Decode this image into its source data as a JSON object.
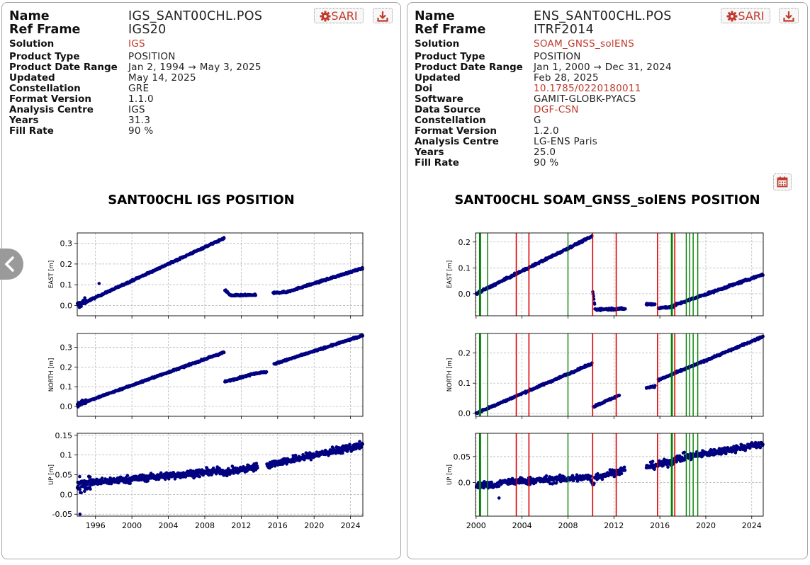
{
  "left": {
    "name_label": "Name",
    "name": "IGS_SANT00CHL.POS",
    "ref_frame_label": "Ref Frame",
    "ref_frame": "IGS20",
    "solution_label": "Solution",
    "solution": "IGS",
    "fields": [
      {
        "k": "Product Type",
        "v": "POSITION"
      },
      {
        "k": "Product Date Range",
        "v": "Jan 2, 1994 → May 3, 2025"
      },
      {
        "k": "Updated",
        "v": "May 14, 2025"
      },
      {
        "k": "Constellation",
        "v": "GRE"
      },
      {
        "k": "Format Version",
        "v": "1.1.0"
      },
      {
        "k": "Analysis Centre",
        "v": "IGS"
      },
      {
        "k": "Years",
        "v": "31.3"
      },
      {
        "k": "Fill Rate",
        "v": "90 %"
      }
    ],
    "sari_label": "SARI",
    "sari_icon": "gear-icon",
    "download_icon": "download-icon",
    "chart_title": "SANT00CHL IGS POSITION"
  },
  "right": {
    "name_label": "Name",
    "name": "ENS_SANT00CHL.POS",
    "ref_frame_label": "Ref Frame",
    "ref_frame": "ITRF2014",
    "solution_label": "Solution",
    "solution": "SOAM_GNSS_solENS",
    "fields": [
      {
        "k": "Product Type",
        "v": "POSITION",
        "link": false
      },
      {
        "k": "Product Date Range",
        "v": "Jan 1, 2000 → Dec 31, 2024",
        "link": false
      },
      {
        "k": "Updated",
        "v": "Feb 28, 2025",
        "link": false
      },
      {
        "k": "Doi",
        "v": "10.1785/0220180011",
        "link": true
      },
      {
        "k": "Software",
        "v": "GAMIT-GLOBK-PYACS",
        "link": false
      },
      {
        "k": "Data Source",
        "v": "DGF-CSN",
        "link": true
      },
      {
        "k": "Constellation",
        "v": "G",
        "link": false
      },
      {
        "k": "Format Version",
        "v": "1.2.0",
        "link": false
      },
      {
        "k": "Analysis Centre",
        "v": "LG-ENS Paris",
        "link": false
      },
      {
        "k": "Years",
        "v": "25.0",
        "link": false
      },
      {
        "k": "Fill Rate",
        "v": "90 %",
        "link": false
      }
    ],
    "sari_label": "SARI",
    "sari_icon": "gear-icon",
    "download_icon": "download-icon",
    "calendar_icon": "calendar-icon",
    "chart_title": "SANT00CHL SOAM_GNSS_solENS POSITION"
  },
  "nav_icon": "chevron-left-icon",
  "colors": {
    "data": "#000080",
    "link": "#c0392b",
    "green_event": "#008000",
    "red_event": "#dd0000"
  },
  "chart_data": [
    {
      "type": "scatter",
      "title": "SANT00CHL IGS POSITION",
      "xlim": [
        1994.0,
        2025.35
      ],
      "xticks": [
        1996,
        2000,
        2004,
        2008,
        2012,
        2016,
        2020,
        2024
      ],
      "panels": [
        {
          "ylabel": "EAST [m]",
          "ylim": [
            -0.05,
            0.35
          ],
          "yticks": [
            0.0,
            0.1,
            0.2,
            0.3
          ],
          "noise": 0.004,
          "segments": [
            {
              "x0": 1994.0,
              "x1": 1995.0,
              "y0": 0.0,
              "y1": 0.02,
              "noise": 0.018
            },
            {
              "x0": 1995.0,
              "x1": 2010.15,
              "y0": 0.018,
              "y1": 0.325
            },
            {
              "x0": 2010.2,
              "x1": 2010.8,
              "y0": 0.075,
              "y1": 0.05
            },
            {
              "x0": 2010.8,
              "x1": 2013.6,
              "y0": 0.048,
              "y1": 0.05
            },
            {
              "x0": 2015.5,
              "x1": 2017.0,
              "y0": 0.06,
              "y1": 0.065
            },
            {
              "x0": 2017.0,
              "x1": 2025.35,
              "y0": 0.065,
              "y1": 0.18
            }
          ],
          "outliers": [
            [
              1996.4,
              0.106
            ]
          ]
        },
        {
          "ylabel": "NORTH [m]",
          "ylim": [
            -0.05,
            0.37
          ],
          "yticks": [
            0.0,
            0.1,
            0.2,
            0.3
          ],
          "noise": 0.004,
          "segments": [
            {
              "x0": 1994.0,
              "x1": 1995.0,
              "y0": 0.01,
              "y1": 0.025,
              "noise": 0.012
            },
            {
              "x0": 1995.0,
              "x1": 2010.15,
              "y0": 0.025,
              "y1": 0.275
            },
            {
              "x0": 2010.2,
              "x1": 2013.0,
              "y0": 0.125,
              "y1": 0.16
            },
            {
              "x0": 2013.0,
              "x1": 2014.8,
              "y0": 0.165,
              "y1": 0.175
            },
            {
              "x0": 2015.6,
              "x1": 2025.35,
              "y0": 0.215,
              "y1": 0.36
            }
          ],
          "outliers": []
        },
        {
          "ylabel": "UP [m]",
          "ylim": [
            -0.055,
            0.155
          ],
          "yticks": [
            -0.05,
            0.0,
            0.05,
            0.1,
            0.15
          ],
          "noise": 0.009,
          "segments": [
            {
              "x0": 1994.0,
              "x1": 1995.5,
              "y0": 0.025,
              "y1": 0.03,
              "noise": 0.02
            },
            {
              "x0": 1995.5,
              "x1": 2010.0,
              "y0": 0.03,
              "y1": 0.06
            },
            {
              "x0": 2010.0,
              "x1": 2013.8,
              "y0": 0.055,
              "y1": 0.07
            },
            {
              "x0": 2014.8,
              "x1": 2025.35,
              "y0": 0.075,
              "y1": 0.125
            }
          ],
          "outliers": [
            [
              1994.3,
              -0.05
            ]
          ]
        }
      ]
    },
    {
      "type": "scatter",
      "title": "SANT00CHL SOAM_GNSS_solENS POSITION",
      "xlim": [
        1999.95,
        2025.0
      ],
      "xticks": [
        2000,
        2004,
        2008,
        2012,
        2016,
        2020,
        2024
      ],
      "green_events": [
        2000.3,
        2000.4,
        2001.0,
        2008.0,
        2017.0,
        2017.1,
        2018.3,
        2018.6,
        2018.9,
        2019.3
      ],
      "red_events": [
        2003.5,
        2004.6,
        2010.15,
        2012.2,
        2015.8,
        2017.3
      ],
      "panels": [
        {
          "ylabel": "EAST [m]",
          "ylim": [
            -0.085,
            0.235
          ],
          "yticks": [
            0.0,
            0.1,
            0.2
          ],
          "noise": 0.004,
          "segments": [
            {
              "x0": 2000.0,
              "x1": 2010.1,
              "y0": 0.0,
              "y1": 0.222
            },
            {
              "x0": 2010.15,
              "x1": 2010.35,
              "y0": 0.01,
              "y1": -0.05
            },
            {
              "x0": 2010.35,
              "x1": 2013.0,
              "y0": -0.06,
              "y1": -0.058
            },
            {
              "x0": 2014.8,
              "x1": 2015.6,
              "y0": -0.04,
              "y1": -0.04
            },
            {
              "x0": 2015.85,
              "x1": 2017.2,
              "y0": -0.055,
              "y1": -0.05
            },
            {
              "x0": 2017.2,
              "x1": 2025.0,
              "y0": -0.045,
              "y1": 0.075
            }
          ],
          "outliers": []
        },
        {
          "ylabel": "NORTH [m]",
          "ylim": [
            -0.01,
            0.265
          ],
          "yticks": [
            0.0,
            0.1,
            0.2
          ],
          "noise": 0.003,
          "segments": [
            {
              "x0": 2000.0,
              "x1": 2010.1,
              "y0": 0.0,
              "y1": 0.165
            },
            {
              "x0": 2010.2,
              "x1": 2012.5,
              "y0": 0.022,
              "y1": 0.06
            },
            {
              "x0": 2014.8,
              "x1": 2015.6,
              "y0": 0.085,
              "y1": 0.09
            },
            {
              "x0": 2015.85,
              "x1": 2025.0,
              "y0": 0.11,
              "y1": 0.255
            }
          ],
          "outliers": []
        },
        {
          "ylabel": "UP [m]",
          "ylim": [
            -0.065,
            0.095
          ],
          "yticks": [
            0.0,
            0.05
          ],
          "noise": 0.007,
          "segments": [
            {
              "x0": 2000.0,
              "x1": 2002.0,
              "y0": -0.005,
              "y1": -0.005
            },
            {
              "x0": 2002.0,
              "x1": 2010.0,
              "y0": 0.0,
              "y1": 0.01
            },
            {
              "x0": 2010.0,
              "x1": 2010.3,
              "y0": 0.005,
              "y1": -0.005
            },
            {
              "x0": 2010.3,
              "x1": 2013.0,
              "y0": 0.01,
              "y1": 0.025
            },
            {
              "x0": 2014.8,
              "x1": 2017.2,
              "y0": 0.03,
              "y1": 0.04
            },
            {
              "x0": 2017.2,
              "x1": 2025.0,
              "y0": 0.045,
              "y1": 0.075
            }
          ],
          "outliers": [
            [
              2002.0,
              -0.03
            ]
          ]
        }
      ]
    }
  ]
}
